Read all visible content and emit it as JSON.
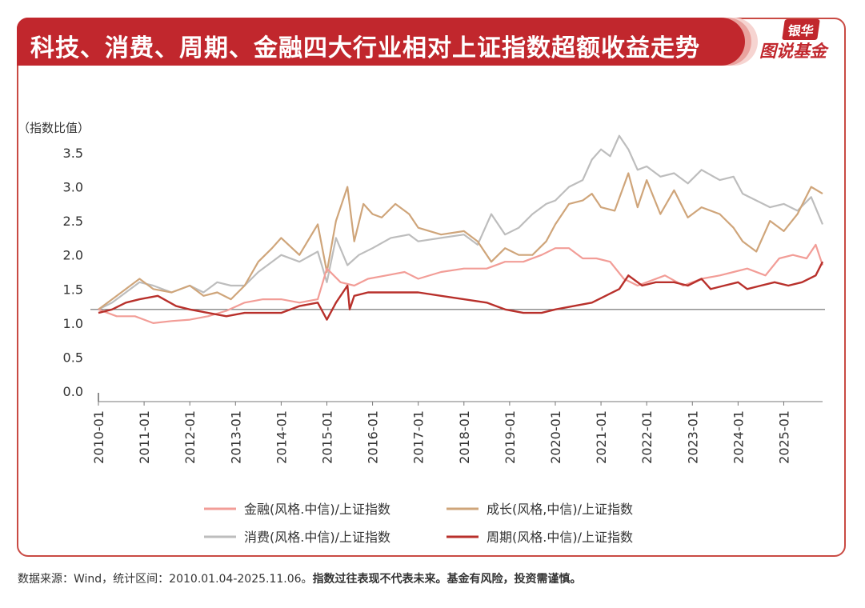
{
  "header": {
    "title": "科技、消费、周期、金融四大行业相对上证指数超额收益走势",
    "logo_top": "银华",
    "logo_bottom": "图说基金"
  },
  "footer": {
    "source": "数据来源：Wind，统计区间：2010.01.04-2025.11.06。",
    "disclaimer": "指数过往表现不代表未来。基金有风险，投资需谨慎。"
  },
  "colors": {
    "accent": "#c1272d",
    "finance": "#f29d97",
    "growth": "#cfa57a",
    "consumer": "#bdbdbd",
    "cycle": "#b8302b"
  },
  "chart_data": {
    "type": "line",
    "ylabel": "（指数比值）",
    "ylim": [
      0,
      3.5
    ],
    "yticks": [
      "0.0",
      "0.5",
      "1.0",
      "1.5",
      "2.0",
      "2.5",
      "3.0",
      "3.5"
    ],
    "xticks": [
      "2010-01",
      "2011-01",
      "2012-01",
      "2013-01",
      "2014-01",
      "2015-01",
      "2016-01",
      "2017-01",
      "2018-01",
      "2019-01",
      "2020-01",
      "2021-01",
      "2022-01",
      "2023-01",
      "2024-01",
      "2025-01"
    ],
    "x_start": 2010.0,
    "x_end": 2025.85,
    "reference_line": 1.2,
    "legend": [
      {
        "name": "金融(风格.中信)/上证指数",
        "color_key": "finance"
      },
      {
        "name": "成长(风格,中信)/上证指数",
        "color_key": "growth"
      },
      {
        "name": "消费(风格.中信)/上证指数",
        "color_key": "consumer"
      },
      {
        "name": "周期(风格.中信)/上证指数",
        "color_key": "cycle"
      }
    ],
    "series": [
      {
        "name": "消费(风格.中信)/上证指数",
        "color_key": "consumer",
        "x": [
          2010.0,
          2010.3,
          2010.6,
          2010.9,
          2011.2,
          2011.6,
          2012.0,
          2012.3,
          2012.6,
          2012.9,
          2013.2,
          2013.5,
          2013.8,
          2014.0,
          2014.4,
          2014.8,
          2015.0,
          2015.2,
          2015.45,
          2015.7,
          2016.0,
          2016.4,
          2016.8,
          2017.0,
          2017.5,
          2018.0,
          2018.3,
          2018.6,
          2018.9,
          2019.2,
          2019.5,
          2019.8,
          2020.0,
          2020.3,
          2020.6,
          2020.8,
          2021.0,
          2021.2,
          2021.4,
          2021.6,
          2021.8,
          2022.0,
          2022.3,
          2022.6,
          2022.9,
          2023.2,
          2023.6,
          2023.9,
          2024.1,
          2024.4,
          2024.7,
          2025.0,
          2025.3,
          2025.6,
          2025.85
        ],
        "values": [
          1.2,
          1.3,
          1.45,
          1.6,
          1.55,
          1.45,
          1.55,
          1.45,
          1.6,
          1.55,
          1.55,
          1.75,
          1.9,
          2.0,
          1.9,
          2.05,
          1.6,
          2.25,
          1.85,
          2.0,
          2.1,
          2.25,
          2.3,
          2.2,
          2.25,
          2.3,
          2.15,
          2.6,
          2.3,
          2.4,
          2.6,
          2.75,
          2.8,
          3.0,
          3.1,
          3.4,
          3.55,
          3.45,
          3.75,
          3.55,
          3.25,
          3.3,
          3.15,
          3.2,
          3.05,
          3.25,
          3.1,
          3.15,
          2.9,
          2.8,
          2.7,
          2.75,
          2.65,
          2.85,
          2.45
        ]
      },
      {
        "name": "成长(风格,中信)/上证指数",
        "color_key": "growth",
        "x": [
          2010.0,
          2010.3,
          2010.6,
          2010.9,
          2011.2,
          2011.6,
          2012.0,
          2012.3,
          2012.6,
          2012.9,
          2013.2,
          2013.5,
          2013.8,
          2014.0,
          2014.4,
          2014.8,
          2015.0,
          2015.2,
          2015.45,
          2015.6,
          2015.8,
          2016.0,
          2016.2,
          2016.5,
          2016.8,
          2017.0,
          2017.5,
          2018.0,
          2018.3,
          2018.6,
          2018.9,
          2019.2,
          2019.5,
          2019.8,
          2020.0,
          2020.3,
          2020.6,
          2020.8,
          2021.0,
          2021.3,
          2021.6,
          2021.8,
          2022.0,
          2022.3,
          2022.6,
          2022.9,
          2023.2,
          2023.6,
          2023.9,
          2024.1,
          2024.4,
          2024.7,
          2025.0,
          2025.3,
          2025.6,
          2025.85
        ],
        "values": [
          1.2,
          1.35,
          1.5,
          1.65,
          1.5,
          1.45,
          1.55,
          1.4,
          1.45,
          1.35,
          1.55,
          1.9,
          2.1,
          2.25,
          2.0,
          2.45,
          1.75,
          2.5,
          3.0,
          2.2,
          2.75,
          2.6,
          2.55,
          2.75,
          2.6,
          2.4,
          2.3,
          2.35,
          2.2,
          1.9,
          2.1,
          2.0,
          2.0,
          2.2,
          2.45,
          2.75,
          2.8,
          2.9,
          2.7,
          2.65,
          3.2,
          2.7,
          3.1,
          2.6,
          2.95,
          2.55,
          2.7,
          2.6,
          2.4,
          2.2,
          2.05,
          2.5,
          2.35,
          2.6,
          3.0,
          2.9
        ]
      },
      {
        "name": "金融(风格.中信)/上证指数",
        "color_key": "finance",
        "x": [
          2010.0,
          2010.4,
          2010.8,
          2011.2,
          2011.6,
          2012.0,
          2012.4,
          2012.8,
          2013.2,
          2013.6,
          2014.0,
          2014.4,
          2014.8,
          2015.0,
          2015.3,
          2015.6,
          2015.9,
          2016.3,
          2016.7,
          2017.0,
          2017.5,
          2018.0,
          2018.5,
          2018.9,
          2019.3,
          2019.7,
          2020.0,
          2020.3,
          2020.6,
          2020.9,
          2021.2,
          2021.5,
          2021.8,
          2022.0,
          2022.4,
          2022.8,
          2023.2,
          2023.6,
          2023.9,
          2024.2,
          2024.6,
          2024.9,
          2025.2,
          2025.5,
          2025.7,
          2025.85
        ],
        "values": [
          1.2,
          1.1,
          1.1,
          1.0,
          1.03,
          1.05,
          1.1,
          1.18,
          1.3,
          1.35,
          1.35,
          1.3,
          1.35,
          1.8,
          1.6,
          1.55,
          1.65,
          1.7,
          1.75,
          1.65,
          1.75,
          1.8,
          1.8,
          1.9,
          1.9,
          2.0,
          2.1,
          2.1,
          1.95,
          1.95,
          1.9,
          1.65,
          1.55,
          1.6,
          1.7,
          1.55,
          1.65,
          1.7,
          1.75,
          1.8,
          1.7,
          1.95,
          2.0,
          1.95,
          2.15,
          1.85
        ]
      },
      {
        "name": "周期(风格.中信)/上证指数",
        "color_key": "cycle",
        "x": [
          2010.0,
          2010.3,
          2010.6,
          2010.9,
          2011.3,
          2011.7,
          2012.0,
          2012.4,
          2012.8,
          2013.2,
          2013.6,
          2014.0,
          2014.4,
          2014.8,
          2015.0,
          2015.2,
          2015.45,
          2015.5,
          2015.6,
          2015.9,
          2016.3,
          2016.7,
          2017.0,
          2017.5,
          2018.0,
          2018.5,
          2018.9,
          2019.3,
          2019.7,
          2020.0,
          2020.4,
          2020.8,
          2021.1,
          2021.4,
          2021.6,
          2021.9,
          2022.2,
          2022.6,
          2022.9,
          2023.2,
          2023.4,
          2023.7,
          2024.0,
          2024.2,
          2024.5,
          2024.8,
          2025.1,
          2025.4,
          2025.7,
          2025.85
        ],
        "values": [
          1.15,
          1.2,
          1.3,
          1.35,
          1.4,
          1.25,
          1.2,
          1.15,
          1.1,
          1.15,
          1.15,
          1.15,
          1.25,
          1.3,
          1.05,
          1.3,
          1.55,
          1.2,
          1.4,
          1.45,
          1.45,
          1.45,
          1.45,
          1.4,
          1.35,
          1.3,
          1.2,
          1.15,
          1.15,
          1.2,
          1.25,
          1.3,
          1.4,
          1.5,
          1.7,
          1.55,
          1.6,
          1.6,
          1.55,
          1.65,
          1.5,
          1.55,
          1.6,
          1.5,
          1.55,
          1.6,
          1.55,
          1.6,
          1.7,
          1.9
        ]
      }
    ]
  }
}
